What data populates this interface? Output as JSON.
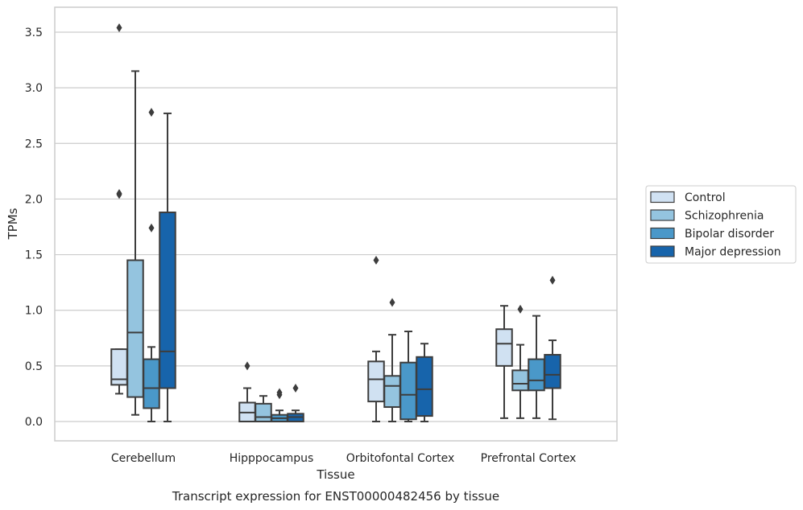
{
  "chart_data": {
    "type": "box",
    "xlabel": "Tissue",
    "ylabel": "TPMs",
    "caption": "Transcript expression for ENST00000482456 by tissue",
    "ylim": [
      -0.17,
      3.72
    ],
    "yticks": [
      0.0,
      0.5,
      1.0,
      1.5,
      2.0,
      2.5,
      3.0,
      3.5
    ],
    "ytick_labels": [
      "0.0",
      "0.5",
      "1.0",
      "1.5",
      "2.0",
      "2.5",
      "3.0",
      "3.5"
    ],
    "grid": "horizontal",
    "legend_position": "right",
    "categories": [
      "Cerebellum",
      "Hipppocampus",
      "Orbitofontal Cortex",
      "Prefrontal Cortex"
    ],
    "series": [
      {
        "name": "Control",
        "color": "#d0e1f2",
        "boxes": [
          {
            "whisker_low": 0.25,
            "q1": 0.33,
            "median": 0.38,
            "q3": 0.65,
            "whisker_high": 0.65,
            "outliers": [
              2.05,
              2.04,
              3.54
            ]
          },
          {
            "whisker_low": 0.0,
            "q1": 0.0,
            "median": 0.08,
            "q3": 0.17,
            "whisker_high": 0.3,
            "outliers": [
              0.5
            ]
          },
          {
            "whisker_low": 0.0,
            "q1": 0.18,
            "median": 0.38,
            "q3": 0.54,
            "whisker_high": 0.63,
            "outliers": [
              1.45
            ]
          },
          {
            "whisker_low": 0.03,
            "q1": 0.5,
            "median": 0.7,
            "q3": 0.83,
            "whisker_high": 1.04,
            "outliers": []
          }
        ]
      },
      {
        "name": "Schizophrenia",
        "color": "#94c4df",
        "boxes": [
          {
            "whisker_low": 0.06,
            "q1": 0.22,
            "median": 0.8,
            "q3": 1.45,
            "whisker_high": 3.15,
            "outliers": []
          },
          {
            "whisker_low": 0.0,
            "q1": 0.0,
            "median": 0.04,
            "q3": 0.16,
            "whisker_high": 0.23,
            "outliers": []
          },
          {
            "whisker_low": 0.0,
            "q1": 0.13,
            "median": 0.32,
            "q3": 0.41,
            "whisker_high": 0.78,
            "outliers": [
              1.07
            ]
          },
          {
            "whisker_low": 0.03,
            "q1": 0.28,
            "median": 0.34,
            "q3": 0.46,
            "whisker_high": 0.69,
            "outliers": [
              1.01
            ]
          }
        ]
      },
      {
        "name": "Bipolar disorder",
        "color": "#4a98c9",
        "boxes": [
          {
            "whisker_low": 0.0,
            "q1": 0.12,
            "median": 0.3,
            "q3": 0.56,
            "whisker_high": 0.67,
            "outliers": [
              1.74,
              2.78
            ]
          },
          {
            "whisker_low": 0.0,
            "q1": 0.0,
            "median": 0.03,
            "q3": 0.06,
            "whisker_high": 0.1,
            "outliers": [
              0.24,
              0.26
            ]
          },
          {
            "whisker_low": 0.0,
            "q1": 0.02,
            "median": 0.24,
            "q3": 0.53,
            "whisker_high": 0.81,
            "outliers": []
          },
          {
            "whisker_low": 0.03,
            "q1": 0.28,
            "median": 0.37,
            "q3": 0.56,
            "whisker_high": 0.95,
            "outliers": []
          }
        ]
      },
      {
        "name": "Major depression",
        "color": "#1764ab",
        "boxes": [
          {
            "whisker_low": 0.0,
            "q1": 0.3,
            "median": 0.63,
            "q3": 1.88,
            "whisker_high": 2.77,
            "outliers": []
          },
          {
            "whisker_low": 0.0,
            "q1": 0.0,
            "median": 0.04,
            "q3": 0.07,
            "whisker_high": 0.1,
            "outliers": [
              0.3
            ]
          },
          {
            "whisker_low": 0.0,
            "q1": 0.05,
            "median": 0.29,
            "q3": 0.58,
            "whisker_high": 0.7,
            "outliers": []
          },
          {
            "whisker_low": 0.02,
            "q1": 0.3,
            "median": 0.42,
            "q3": 0.6,
            "whisker_high": 0.73,
            "outliers": [
              1.27
            ]
          }
        ]
      }
    ]
  }
}
